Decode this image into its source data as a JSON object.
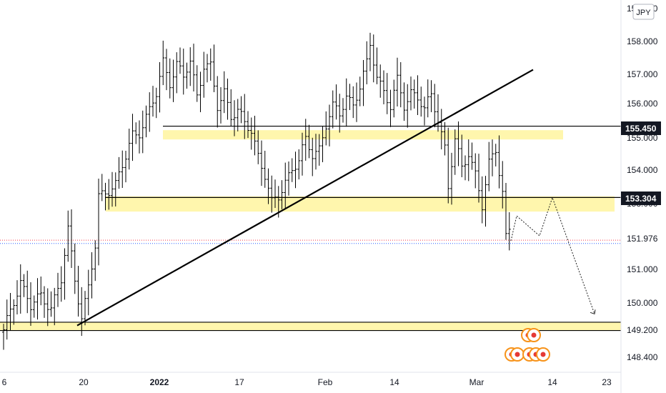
{
  "chart_data": {
    "type": "candlestick",
    "currency": "JPY",
    "price_axis": {
      "ticks": [
        "158.000",
        "157.000",
        "156.000",
        "155.000",
        "154.000",
        "153.000",
        "151.000",
        "150.000",
        "149.200",
        "148.400"
      ],
      "top_partial": "158.800",
      "ylim": [
        148.0,
        158.9
      ]
    },
    "time_axis": {
      "ticks": [
        "6",
        "20",
        "2022",
        "17",
        "Feb",
        "14",
        "Mar",
        "14",
        "23"
      ]
    },
    "price_labels": [
      {
        "value": 155.45,
        "text": "155.450",
        "style": "dark"
      },
      {
        "value": 153.304,
        "text": "153.304",
        "style": "dark"
      },
      {
        "value": 151.976,
        "text": "151.976",
        "style": "plain"
      }
    ],
    "zones": [
      {
        "low": 155.05,
        "high": 155.33
      },
      {
        "low": 152.88,
        "high": 153.34
      },
      {
        "low": 149.3,
        "high": 149.55
      }
    ],
    "horizontal_lines": [
      155.45,
      153.304,
      149.55,
      149.3
    ],
    "current_price_lines": [
      152.02,
      151.92
    ],
    "trendline": {
      "from": [
        0,
        149.45
      ],
      "to": [
        150,
        157.15
      ]
    },
    "projection_path": [
      [
        148,
        152.0
      ],
      [
        150,
        152.75
      ],
      [
        155,
        152.15
      ],
      [
        159,
        153.3
      ],
      [
        166,
        149.8
      ]
    ],
    "price_series": [
      {
        "i": 0,
        "close": 149.25
      },
      {
        "i": 3,
        "close": 150.2
      },
      {
        "i": 5,
        "close": 150.8
      },
      {
        "i": 8,
        "close": 150.0
      },
      {
        "i": 11,
        "close": 150.35
      },
      {
        "i": 14,
        "close": 150.0
      },
      {
        "i": 17,
        "close": 150.8
      },
      {
        "i": 19,
        "close": 152.3
      },
      {
        "i": 21,
        "close": 150.9
      },
      {
        "i": 23,
        "close": 149.7
      },
      {
        "i": 25,
        "close": 150.6
      },
      {
        "i": 27,
        "close": 151.8
      },
      {
        "i": 28,
        "close": 153.3
      },
      {
        "i": 30,
        "close": 153.5
      },
      {
        "i": 33,
        "close": 153.7
      },
      {
        "i": 36,
        "close": 154.5
      },
      {
        "i": 38,
        "close": 155.2
      },
      {
        "i": 40,
        "close": 155.3
      },
      {
        "i": 43,
        "close": 155.9
      },
      {
        "i": 45,
        "close": 156.4
      },
      {
        "i": 47,
        "close": 157.4
      },
      {
        "i": 49,
        "close": 156.8
      },
      {
        "i": 51,
        "close": 157.3
      },
      {
        "i": 53,
        "close": 156.9
      },
      {
        "i": 55,
        "close": 157.4
      },
      {
        "i": 57,
        "close": 156.4
      },
      {
        "i": 59,
        "close": 157.3
      },
      {
        "i": 61,
        "close": 157.2
      },
      {
        "i": 63,
        "close": 156.0
      },
      {
        "i": 65,
        "close": 156.5
      },
      {
        "i": 67,
        "close": 155.8
      },
      {
        "i": 69,
        "close": 155.9
      },
      {
        "i": 71,
        "close": 155.5
      },
      {
        "i": 73,
        "close": 155.3
      },
      {
        "i": 75,
        "close": 154.6
      },
      {
        "i": 77,
        "close": 154.0
      },
      {
        "i": 79,
        "close": 153.1
      },
      {
        "i": 81,
        "close": 153.3
      },
      {
        "i": 83,
        "close": 153.8
      },
      {
        "i": 85,
        "close": 154.2
      },
      {
        "i": 87,
        "close": 154.4
      },
      {
        "i": 89,
        "close": 155.0
      },
      {
        "i": 91,
        "close": 154.6
      },
      {
        "i": 93,
        "close": 154.8
      },
      {
        "i": 95,
        "close": 155.5
      },
      {
        "i": 97,
        "close": 156.0
      },
      {
        "i": 99,
        "close": 155.8
      },
      {
        "i": 101,
        "close": 156.4
      },
      {
        "i": 103,
        "close": 156.1
      },
      {
        "i": 105,
        "close": 156.6
      },
      {
        "i": 107,
        "close": 157.3
      },
      {
        "i": 108,
        "close": 157.9
      },
      {
        "i": 110,
        "close": 157.0
      },
      {
        "i": 112,
        "close": 156.5
      },
      {
        "i": 114,
        "close": 156.0
      },
      {
        "i": 116,
        "close": 156.8
      },
      {
        "i": 118,
        "close": 156.1
      },
      {
        "i": 120,
        "close": 156.5
      },
      {
        "i": 122,
        "close": 156.3
      },
      {
        "i": 124,
        "close": 155.9
      },
      {
        "i": 126,
        "close": 156.4
      },
      {
        "i": 128,
        "close": 155.7
      },
      {
        "i": 130,
        "close": 154.8
      },
      {
        "i": 131,
        "close": 153.6
      },
      {
        "i": 133,
        "close": 155.0
      },
      {
        "i": 135,
        "close": 154.2
      },
      {
        "i": 137,
        "close": 154.7
      },
      {
        "i": 139,
        "close": 154.0
      },
      {
        "i": 141,
        "close": 153.0
      },
      {
        "i": 143,
        "close": 154.3
      },
      {
        "i": 145,
        "close": 154.8
      },
      {
        "i": 147,
        "close": 153.5
      },
      {
        "i": 148,
        "close": 152.1
      },
      {
        "i": 149,
        "close": 152.3
      }
    ],
    "colors": {
      "zone": "#fff6ad",
      "line": "#000000",
      "bar": "#000000",
      "label_bg": "#131722",
      "red_dotted": "#f23645",
      "blue_dotted": "#2962ff"
    }
  }
}
